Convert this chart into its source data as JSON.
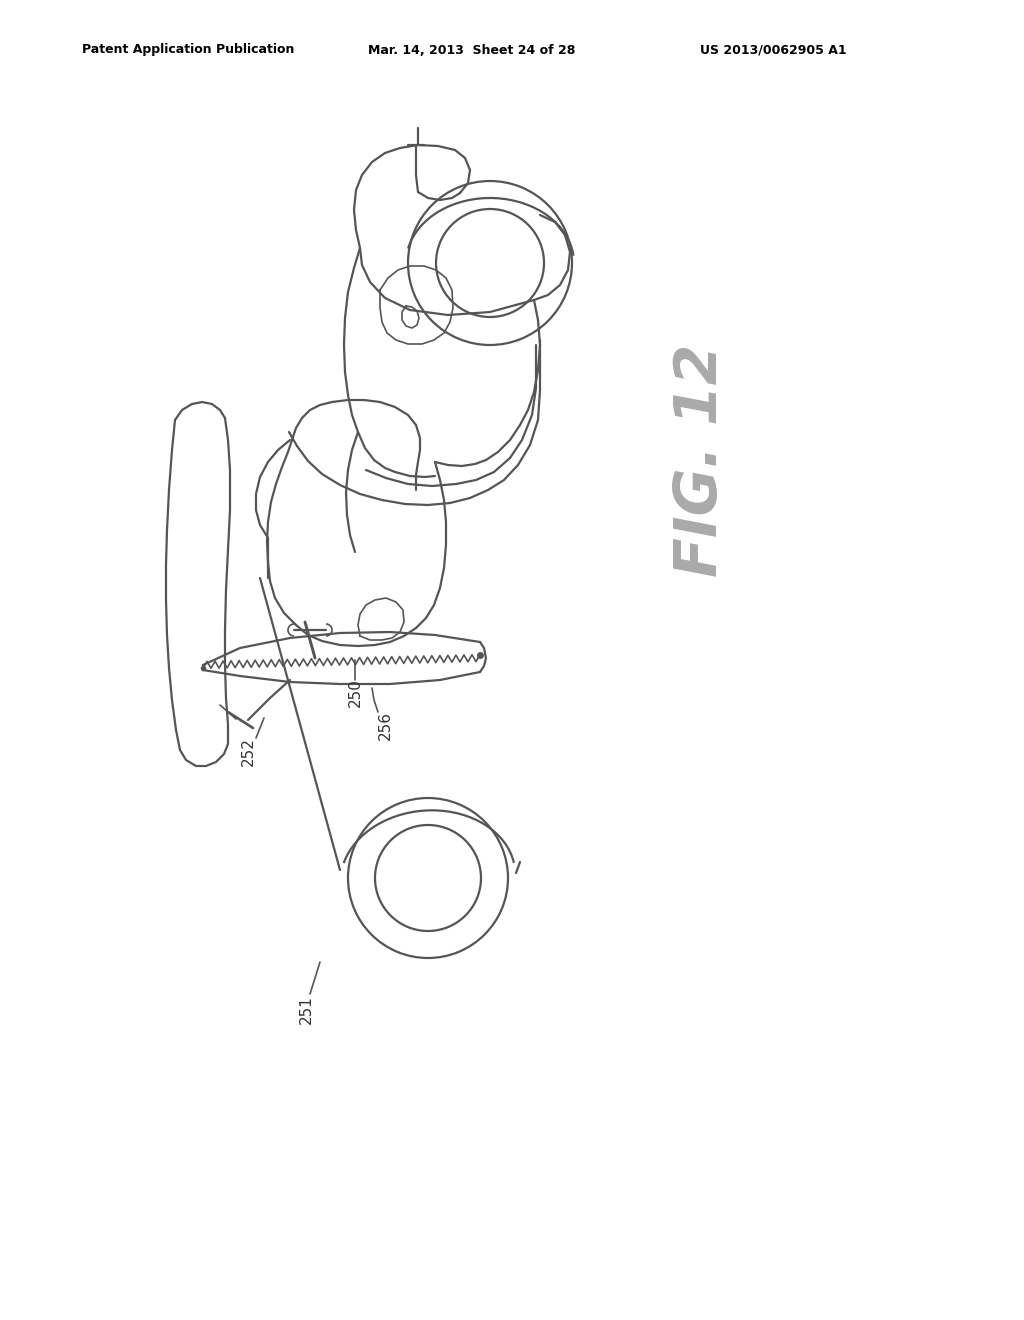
{
  "header_left": "Patent Application Publication",
  "header_mid": "Mar. 14, 2013  Sheet 24 of 28",
  "header_right": "US 2013/0062905 A1",
  "fig_label": "FIG. 12",
  "bg_color": "#ffffff",
  "line_color": "#555555",
  "text_color": "#333333",
  "header_color": "#000000",
  "lw": 1.6,
  "lw2": 1.2
}
